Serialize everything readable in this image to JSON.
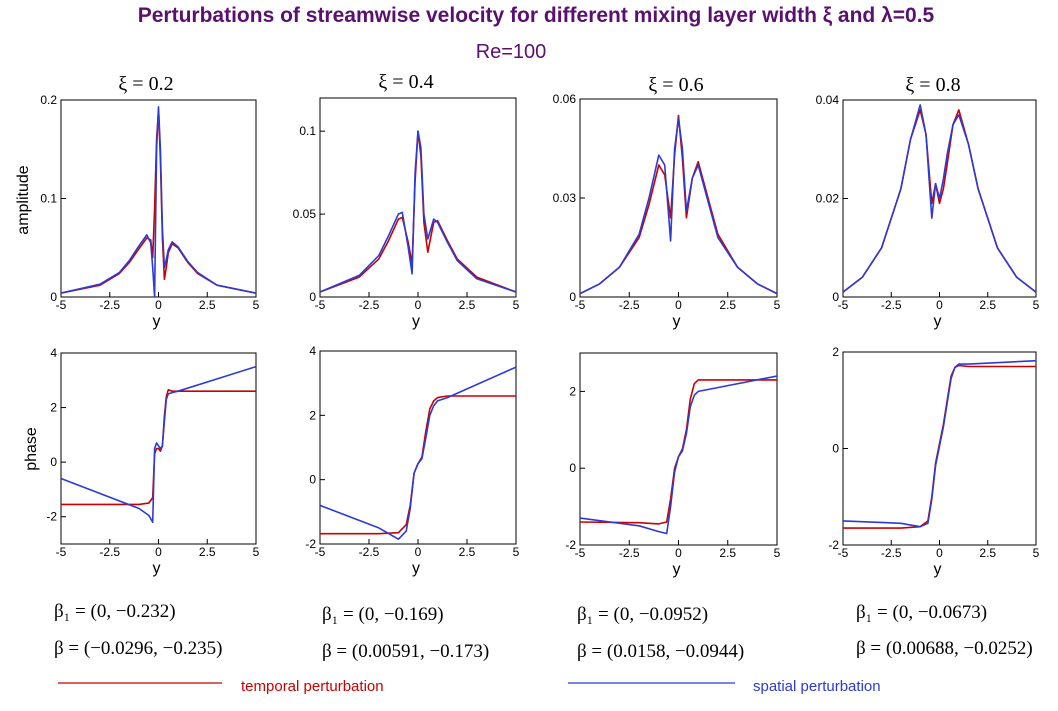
{
  "title": "Perturbations of streamwise velocity for different mixing layer width ξ and λ=0.5",
  "subtitle": "Re=100",
  "legend": {
    "temporal": {
      "label": "temporal perturbation",
      "color": "#cc0000"
    },
    "spatial": {
      "label": "spatial perturbation",
      "color": "#2b3bd6"
    }
  },
  "row_labels": {
    "amplitude": "amplitude",
    "phase": "phase"
  },
  "x_label": "y",
  "panel_titles": [
    "ξ = 0.2",
    "ξ = 0.4",
    "ξ = 0.6",
    "ξ = 0.8"
  ],
  "beta_labels": [
    {
      "beta1": "β₁ = (0, −0.232)",
      "beta": "β = (−0.0296, −0.235)"
    },
    {
      "beta1": "β₁ = (0, −0.169)",
      "beta": "β = (0.00591, −0.173)"
    },
    {
      "beta1": "β₁ = (0, −0.0952)",
      "beta": "β = (0.0158, −0.0944)"
    },
    {
      "beta1": "β₁ = (0, −0.0673)",
      "beta": "β = (0.00688, −0.0252)"
    }
  ],
  "chart_data": [
    {
      "type": "line",
      "xlabel": "y",
      "ylabel": "amplitude",
      "xlim": [
        -5,
        5
      ],
      "ylim": [
        0,
        0.2
      ],
      "xticks": [
        "-5",
        "-2.5",
        "0",
        "2.5",
        "5"
      ],
      "yticks": [
        0,
        0.1,
        0.2
      ],
      "ytick_labels": [
        "0",
        "0.1",
        "0.2"
      ],
      "series": [
        {
          "name": "temporal perturbation",
          "x": [
            -5,
            -3,
            -2,
            -1.5,
            -1,
            -0.6,
            -0.4,
            -0.3,
            -0.2,
            -0.1,
            0,
            0.1,
            0.2,
            0.3,
            0.4,
            0.5,
            0.7,
            1,
            1.5,
            2,
            3,
            5
          ],
          "y": [
            0.004,
            0.012,
            0.024,
            0.035,
            0.049,
            0.06,
            0.058,
            0.04,
            0.09,
            0.16,
            0.19,
            0.14,
            0.06,
            0.018,
            0.03,
            0.045,
            0.054,
            0.05,
            0.035,
            0.024,
            0.012,
            0.004
          ]
        },
        {
          "name": "spatial perturbation",
          "x": [
            -5,
            -3,
            -2,
            -1.5,
            -1,
            -0.6,
            -0.4,
            -0.3,
            -0.2,
            -0.1,
            0,
            0.1,
            0.2,
            0.3,
            0.4,
            0.5,
            0.7,
            1,
            1.5,
            2,
            3,
            5
          ],
          "y": [
            0.004,
            0.013,
            0.025,
            0.037,
            0.052,
            0.063,
            0.055,
            0.03,
            0.0,
            0.15,
            0.193,
            0.15,
            0.07,
            0.03,
            0.038,
            0.048,
            0.056,
            0.051,
            0.036,
            0.025,
            0.012,
            0.004
          ]
        }
      ]
    },
    {
      "type": "line",
      "xlabel": "y",
      "ylabel": "",
      "xlim": [
        -5,
        5
      ],
      "ylim": [
        0,
        0.12
      ],
      "xticks": [
        "-5",
        "-2.5",
        "0",
        "2.5",
        "5"
      ],
      "yticks": [
        0,
        0.05,
        0.1
      ],
      "ytick_labels": [
        "0",
        "0.05",
        "0.1"
      ],
      "series": [
        {
          "name": "temporal perturbation",
          "x": [
            -5,
            -3,
            -2,
            -1.5,
            -1,
            -0.8,
            -0.5,
            -0.3,
            -0.15,
            0,
            0.15,
            0.3,
            0.5,
            0.8,
            1,
            1.5,
            2,
            3,
            5
          ],
          "y": [
            0.003,
            0.012,
            0.023,
            0.034,
            0.047,
            0.048,
            0.033,
            0.02,
            0.07,
            0.1,
            0.085,
            0.045,
            0.027,
            0.045,
            0.046,
            0.034,
            0.023,
            0.012,
            0.003
          ]
        },
        {
          "name": "spatial perturbation",
          "x": [
            -5,
            -3,
            -2,
            -1.5,
            -1,
            -0.8,
            -0.5,
            -0.3,
            -0.15,
            0,
            0.15,
            0.3,
            0.5,
            0.8,
            1,
            1.5,
            2,
            3,
            5
          ],
          "y": [
            0.003,
            0.013,
            0.025,
            0.037,
            0.05,
            0.051,
            0.03,
            0.014,
            0.075,
            0.1,
            0.09,
            0.05,
            0.035,
            0.047,
            0.045,
            0.033,
            0.022,
            0.011,
            0.003
          ]
        }
      ]
    },
    {
      "type": "line",
      "xlabel": "y",
      "ylabel": "",
      "xlim": [
        -5,
        5
      ],
      "ylim": [
        0,
        0.06
      ],
      "xticks": [
        "-5",
        "-2.5",
        "0",
        "2.5",
        "5"
      ],
      "yticks": [
        0,
        0.03,
        0.06
      ],
      "ytick_labels": [
        "0",
        "0.03",
        "0.06"
      ],
      "series": [
        {
          "name": "temporal perturbation",
          "x": [
            -5,
            -4,
            -3,
            -2,
            -1.5,
            -1,
            -0.7,
            -0.4,
            -0.2,
            0,
            0.2,
            0.4,
            0.7,
            1,
            1.5,
            2,
            3,
            4,
            5
          ],
          "y": [
            0.001,
            0.004,
            0.009,
            0.018,
            0.028,
            0.04,
            0.037,
            0.024,
            0.043,
            0.055,
            0.042,
            0.024,
            0.036,
            0.041,
            0.03,
            0.019,
            0.009,
            0.004,
            0.001
          ]
        },
        {
          "name": "spatial perturbation",
          "x": [
            -5,
            -4,
            -3,
            -2,
            -1.5,
            -1,
            -0.7,
            -0.4,
            -0.2,
            0,
            0.2,
            0.4,
            0.7,
            1,
            1.5,
            2,
            3,
            4,
            5
          ],
          "y": [
            0.001,
            0.004,
            0.009,
            0.019,
            0.03,
            0.043,
            0.04,
            0.017,
            0.045,
            0.054,
            0.045,
            0.026,
            0.036,
            0.04,
            0.029,
            0.018,
            0.009,
            0.004,
            0.001
          ]
        }
      ]
    },
    {
      "type": "line",
      "xlabel": "y",
      "ylabel": "",
      "xlim": [
        -5,
        5
      ],
      "ylim": [
        0,
        0.04
      ],
      "xticks": [
        "-5",
        "-2.5",
        "0",
        "2.5",
        "5"
      ],
      "yticks": [
        0,
        0.02,
        0.04
      ],
      "ytick_labels": [
        "0",
        "0.02",
        "0.04"
      ],
      "series": [
        {
          "name": "temporal perturbation",
          "x": [
            -5,
            -4,
            -3,
            -2,
            -1.5,
            -1,
            -0.7,
            -0.4,
            -0.2,
            0,
            0.2,
            0.4,
            0.7,
            1,
            1.5,
            2,
            3,
            4,
            5
          ],
          "y": [
            0.001,
            0.004,
            0.01,
            0.022,
            0.032,
            0.038,
            0.033,
            0.019,
            0.023,
            0.019,
            0.022,
            0.027,
            0.035,
            0.038,
            0.031,
            0.022,
            0.01,
            0.004,
            0.001
          ]
        },
        {
          "name": "spatial perturbation",
          "x": [
            -5,
            -4,
            -3,
            -2,
            -1.5,
            -1,
            -0.7,
            -0.4,
            -0.2,
            0,
            0.2,
            0.4,
            0.7,
            1,
            1.5,
            2,
            3,
            4,
            5
          ],
          "y": [
            0.001,
            0.004,
            0.01,
            0.022,
            0.032,
            0.039,
            0.033,
            0.016,
            0.023,
            0.02,
            0.024,
            0.029,
            0.035,
            0.037,
            0.031,
            0.022,
            0.01,
            0.004,
            0.001
          ]
        }
      ]
    },
    {
      "type": "line",
      "xlabel": "y",
      "ylabel": "phase",
      "xlim": [
        -5,
        5
      ],
      "ylim": [
        -3,
        4
      ],
      "xticks": [
        "-5",
        "-2.5",
        "0",
        "2.5",
        "5"
      ],
      "yticks": [
        -2,
        0,
        2,
        4
      ],
      "ytick_labels": [
        "-2",
        "0",
        "2",
        "4"
      ],
      "series": [
        {
          "name": "temporal perturbation",
          "x": [
            -5,
            -1,
            -0.5,
            -0.3,
            -0.2,
            -0.1,
            0,
            0.1,
            0.2,
            0.3,
            0.4,
            0.5,
            0.7,
            1,
            5
          ],
          "y": [
            -1.55,
            -1.55,
            -1.5,
            -1.3,
            0.3,
            0.5,
            0.5,
            0.4,
            0.6,
            1.7,
            2.4,
            2.65,
            2.6,
            2.6,
            2.6
          ]
        },
        {
          "name": "spatial perturbation",
          "x": [
            -5,
            -1,
            -0.5,
            -0.3,
            -0.2,
            -0.1,
            0,
            0.1,
            0.2,
            0.3,
            0.4,
            0.5,
            0.7,
            1,
            5
          ],
          "y": [
            -0.6,
            -1.7,
            -1.95,
            -2.2,
            0.5,
            0.7,
            0.6,
            0.5,
            0.6,
            1.5,
            2.3,
            2.5,
            2.55,
            2.6,
            3.5
          ]
        }
      ]
    },
    {
      "type": "line",
      "xlabel": "y",
      "ylabel": "",
      "xlim": [
        -5,
        5
      ],
      "ylim": [
        -2,
        4
      ],
      "xticks": [
        "-5",
        "-2.5",
        "0",
        "2.5",
        "5"
      ],
      "yticks": [
        -2,
        0,
        2,
        4
      ],
      "ytick_labels": [
        "-2",
        "0",
        "2",
        "4"
      ],
      "series": [
        {
          "name": "temporal perturbation",
          "x": [
            -5,
            -2,
            -1,
            -0.6,
            -0.4,
            -0.2,
            0,
            0.2,
            0.4,
            0.6,
            0.8,
            1,
            1.5,
            5
          ],
          "y": [
            -1.68,
            -1.68,
            -1.65,
            -1.4,
            -0.8,
            0.2,
            0.5,
            0.7,
            1.5,
            2.2,
            2.45,
            2.55,
            2.6,
            2.6
          ]
        },
        {
          "name": "spatial perturbation",
          "x": [
            -5,
            -2,
            -1,
            -0.6,
            -0.4,
            -0.2,
            0,
            0.2,
            0.4,
            0.6,
            0.8,
            1,
            1.5,
            5
          ],
          "y": [
            -0.8,
            -1.5,
            -1.85,
            -1.6,
            -0.9,
            0.2,
            0.5,
            0.65,
            1.3,
            2.0,
            2.3,
            2.45,
            2.55,
            3.5
          ]
        }
      ]
    },
    {
      "type": "line",
      "xlabel": "y",
      "ylabel": "",
      "xlim": [
        -5,
        5
      ],
      "ylim": [
        -2,
        3
      ],
      "xticks": [
        "-5",
        "-2.5",
        "0",
        "2.5",
        "5"
      ],
      "yticks": [
        -2,
        0,
        2
      ],
      "ytick_labels": [
        "-2",
        "0",
        "2"
      ],
      "series": [
        {
          "name": "temporal perturbation",
          "x": [
            -5,
            -2,
            -1,
            -0.6,
            -0.4,
            -0.2,
            0,
            0.2,
            0.4,
            0.6,
            0.8,
            1,
            1.5,
            5
          ],
          "y": [
            -1.4,
            -1.42,
            -1.45,
            -1.4,
            -0.8,
            0.0,
            0.3,
            0.5,
            1.0,
            1.8,
            2.2,
            2.3,
            2.3,
            2.3
          ]
        },
        {
          "name": "spatial perturbation",
          "x": [
            -5,
            -2,
            -1,
            -0.6,
            -0.4,
            -0.2,
            0,
            0.2,
            0.4,
            0.6,
            0.8,
            1,
            1.5,
            5
          ],
          "y": [
            -1.3,
            -1.5,
            -1.65,
            -1.7,
            -1.0,
            -0.1,
            0.3,
            0.45,
            0.9,
            1.6,
            1.9,
            2.0,
            2.05,
            2.4
          ]
        }
      ]
    },
    {
      "type": "line",
      "xlabel": "y",
      "ylabel": "",
      "xlim": [
        -5,
        5
      ],
      "ylim": [
        -2,
        2
      ],
      "xticks": [
        "-5",
        "-2.5",
        "0",
        "2.5",
        "5"
      ],
      "yticks": [
        -2,
        0,
        2
      ],
      "ytick_labels": [
        "-2",
        "0",
        "2"
      ],
      "series": [
        {
          "name": "temporal perturbation",
          "x": [
            -5,
            -2,
            -1,
            -0.6,
            -0.4,
            -0.2,
            0,
            0.2,
            0.4,
            0.6,
            0.8,
            1,
            1.5,
            5
          ],
          "y": [
            -1.65,
            -1.65,
            -1.62,
            -1.5,
            -1.0,
            -0.3,
            0.1,
            0.5,
            1.0,
            1.5,
            1.68,
            1.72,
            1.7,
            1.7
          ]
        },
        {
          "name": "spatial perturbation",
          "x": [
            -5,
            -2,
            -1,
            -0.6,
            -0.4,
            -0.2,
            0,
            0.2,
            0.4,
            0.6,
            0.8,
            1,
            1.5,
            5
          ],
          "y": [
            -1.5,
            -1.55,
            -1.62,
            -1.55,
            -1.05,
            -0.35,
            0.05,
            0.45,
            0.95,
            1.45,
            1.68,
            1.75,
            1.75,
            1.82
          ]
        }
      ]
    }
  ]
}
